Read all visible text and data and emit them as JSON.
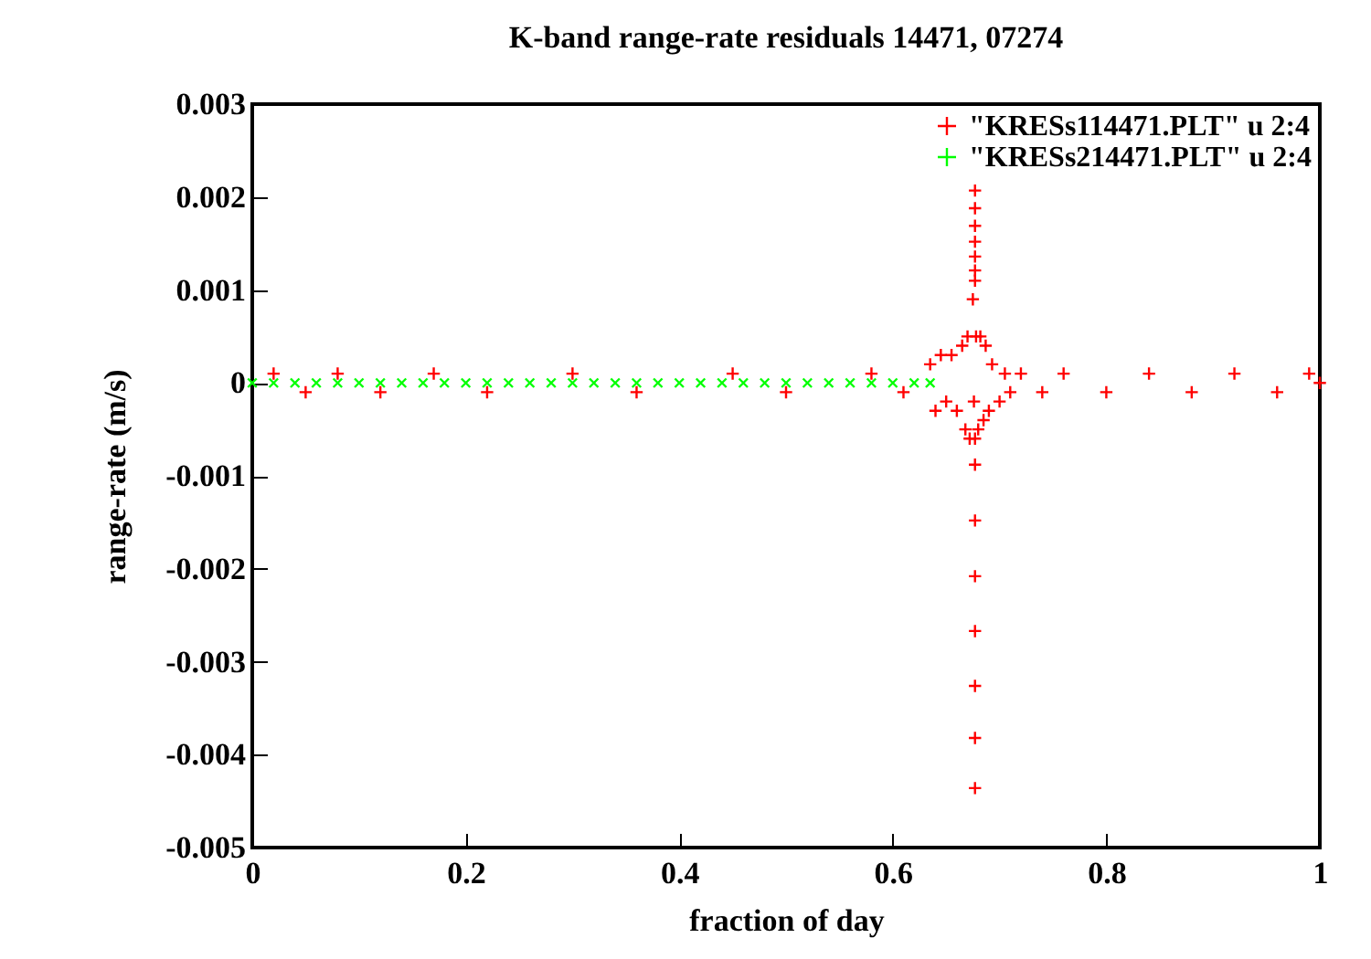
{
  "chart_data": {
    "type": "scatter",
    "title": "K-band range-rate residuals 14471, 07274",
    "xlabel": "fraction of day",
    "ylabel": "range-rate (m/s)",
    "xlim": [
      0,
      1
    ],
    "xticks": [
      0,
      0.2,
      0.4,
      0.6,
      0.8,
      1
    ],
    "ylim": [
      -0.005,
      0.003
    ],
    "yticks": [
      -0.005,
      -0.004,
      -0.003,
      -0.002,
      -0.001,
      0,
      0.001,
      0.002,
      0.003
    ],
    "legend": "top right",
    "marker": "cross",
    "grid": false,
    "series": [
      {
        "name": "\"KRESs114471.PLT\" u 2:4",
        "color": "#ff0000",
        "x": [
          0.02,
          0.05,
          0.08,
          0.12,
          0.17,
          0.22,
          0.3,
          0.36,
          0.45,
          0.5,
          0.58,
          0.61,
          0.635,
          0.64,
          0.645,
          0.65,
          0.655,
          0.66,
          0.665,
          0.668,
          0.67,
          0.672,
          0.675,
          0.676,
          0.677,
          0.677,
          0.678,
          0.68,
          0.682,
          0.685,
          0.687,
          0.69,
          0.693,
          0.7,
          0.705,
          0.71,
          0.72,
          0.74,
          0.76,
          0.8,
          0.84,
          0.88,
          0.92,
          0.96,
          0.99,
          1.0,
          0.677,
          0.677,
          0.677,
          0.677,
          0.677,
          0.677,
          0.677,
          0.677,
          0.677,
          0.677,
          0.677,
          0.677,
          0.677
        ],
        "values": [
          0.0001,
          -0.0001,
          0.0001,
          -0.0001,
          0.0001,
          -0.0001,
          0.0001,
          -0.0001,
          0.0001,
          -0.0001,
          0.0001,
          -0.0001,
          0.0002,
          -0.0003,
          0.0003,
          -0.0002,
          0.0003,
          -0.0003,
          0.0004,
          -0.0005,
          0.0005,
          -0.0006,
          0.0009,
          -0.0002,
          0.0011,
          -0.0006,
          0.0005,
          -0.0005,
          0.0005,
          -0.0004,
          0.0004,
          -0.0003,
          0.0002,
          -0.0002,
          0.0001,
          -0.0001,
          0.0001,
          -0.0001,
          0.0001,
          -0.0001,
          0.0001,
          -0.0001,
          0.0001,
          -0.0001,
          0.0001,
          0,
          0.00207,
          0.00188,
          0.00169,
          0.00152,
          0.00136,
          0.00121,
          -0.00088,
          -0.00148,
          -0.00208,
          -0.00267,
          -0.00326,
          -0.00382,
          -0.00436
        ]
      },
      {
        "name": "\"KRESs214471.PLT\" u 2:4",
        "color": "#00ff00",
        "x": [
          0,
          0.02,
          0.04,
          0.06,
          0.08,
          0.1,
          0.12,
          0.14,
          0.16,
          0.18,
          0.2,
          0.22,
          0.24,
          0.26,
          0.28,
          0.3,
          0.32,
          0.34,
          0.36,
          0.38,
          0.4,
          0.42,
          0.44,
          0.46,
          0.48,
          0.5,
          0.52,
          0.54,
          0.56,
          0.58,
          0.6,
          0.62,
          0.635
        ],
        "values": [
          0,
          0,
          0,
          0,
          0,
          0,
          0,
          0,
          0,
          0,
          0,
          0,
          0,
          0,
          0,
          0,
          0,
          0,
          0,
          0,
          0,
          0,
          0,
          0,
          0,
          0,
          0,
          0,
          0,
          0,
          0,
          0,
          0
        ]
      }
    ]
  }
}
